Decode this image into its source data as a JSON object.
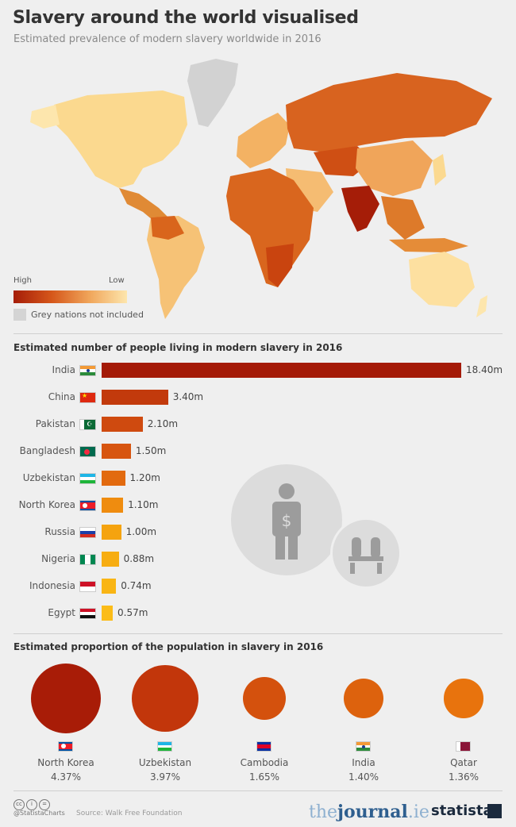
{
  "header": {
    "title": "Slavery around the world visualised",
    "subtitle": "Estimated prevalence of modern slavery worldwide in 2016"
  },
  "map_legend": {
    "high_label": "High",
    "low_label": "Low",
    "grey_label": "Grey nations not included",
    "colors": [
      "#a51d08",
      "#d5561a",
      "#f0a55a",
      "#fde6ad"
    ],
    "grey_color": "#d4d4d4"
  },
  "chart_data": [
    {
      "type": "bar",
      "orientation": "horizontal",
      "title": "Estimated number of people living in modern slavery in 2016",
      "categories": [
        "India",
        "China",
        "Pakistan",
        "Bangladesh",
        "Uzbekistan",
        "North Korea",
        "Russia",
        "Nigeria",
        "Indonesia",
        "Egypt"
      ],
      "values": [
        18.4,
        3.4,
        2.1,
        1.5,
        1.2,
        1.1,
        1.0,
        0.88,
        0.74,
        0.57
      ],
      "value_labels": [
        "18.40m",
        "3.40m",
        "2.10m",
        "1.50m",
        "1.20m",
        "1.10m",
        "1.00m",
        "0.88m",
        "0.74m",
        "0.57m"
      ],
      "unit": "m",
      "colors": [
        "#a41a07",
        "#c23a0c",
        "#cf4a0f",
        "#d75510",
        "#e26a0f",
        "#ef8c0f",
        "#f5a30f",
        "#f7ad12",
        "#f9b514",
        "#fbbc18"
      ]
    },
    {
      "type": "bubble",
      "title": "Estimated proportion of the population in slavery in 2016",
      "categories": [
        "North Korea",
        "Uzbekistan",
        "Cambodia",
        "India",
        "Qatar"
      ],
      "values": [
        4.37,
        3.97,
        1.65,
        1.4,
        1.36
      ],
      "value_labels": [
        "4.37%",
        "3.97%",
        "1.65%",
        "1.40%",
        "1.36%"
      ],
      "unit": "%",
      "colors": [
        "#a81c07",
        "#c2360b",
        "#d4510d",
        "#dd620d",
        "#e8730d"
      ]
    }
  ],
  "footer": {
    "handle": "@StatistaCharts",
    "source": "Source: Walk Free Foundation",
    "brand_journal_prefix": "the",
    "brand_journal_main": "journal",
    "brand_journal_suffix": ".ie",
    "brand_statista": "statista"
  }
}
